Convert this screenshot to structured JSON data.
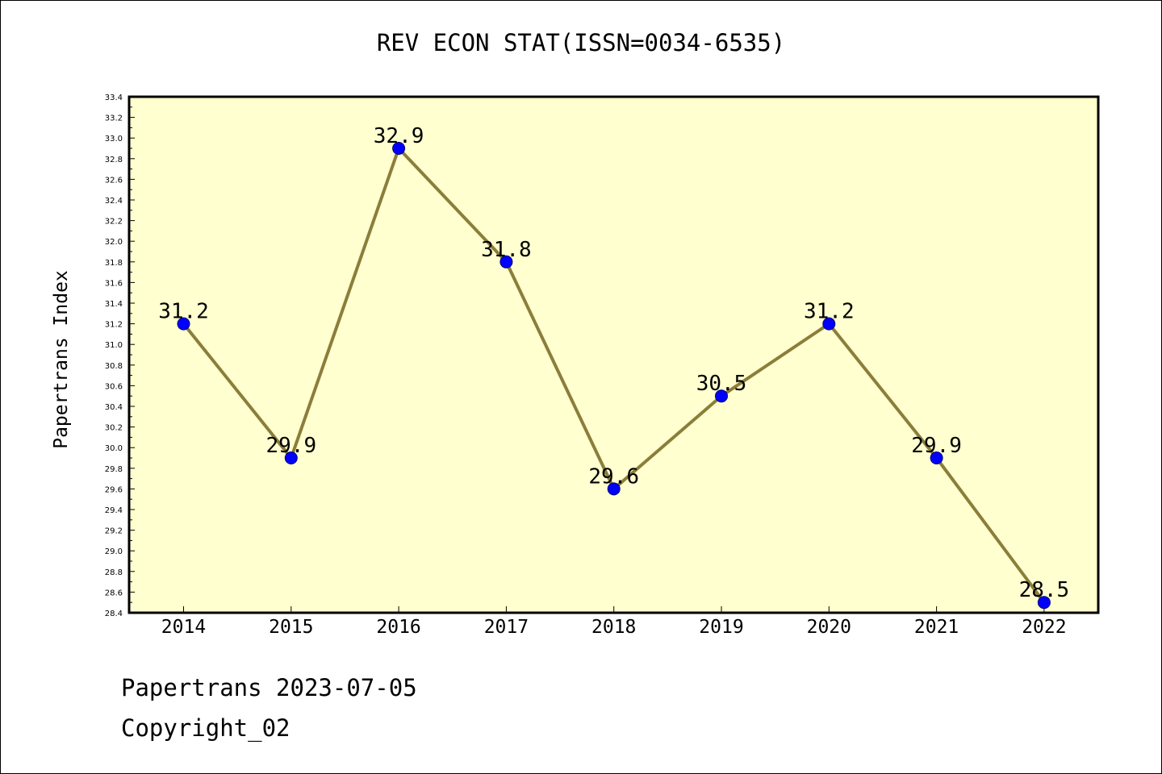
{
  "chart_data": {
    "type": "line",
    "title": "REV ECON STAT(ISSN=0034-6535)",
    "xlabel": "",
    "ylabel": "Papertrans Index",
    "categories": [
      "2014",
      "2015",
      "2016",
      "2017",
      "2018",
      "2019",
      "2020",
      "2021",
      "2022"
    ],
    "values": [
      31.2,
      29.9,
      32.9,
      31.8,
      29.6,
      30.5,
      31.2,
      29.9,
      28.5
    ],
    "data_labels": [
      "31.2",
      "29.9",
      "32.9",
      "31.8",
      "29.6",
      "30.5",
      "31.2",
      "29.9",
      "28.5"
    ],
    "ylim": [
      28.4,
      33.4
    ],
    "y_ticks": [
      "28.4",
      "28.6",
      "28.8",
      "29.0",
      "29.2",
      "29.4",
      "29.6",
      "29.8",
      "30.0",
      "30.2",
      "30.4",
      "30.6",
      "30.8",
      "31.0",
      "31.2",
      "31.4",
      "31.6",
      "31.8",
      "32.0",
      "32.2",
      "32.4",
      "32.6",
      "32.8",
      "33.0",
      "33.2",
      "33.4"
    ],
    "grid": false,
    "colors": {
      "plot_background": "#ffffd0",
      "line": "#8b7e3a",
      "marker": "#0000ff"
    }
  },
  "footer": {
    "line1": "Papertrans 2023-07-05",
    "line2": "Copyright_02"
  }
}
